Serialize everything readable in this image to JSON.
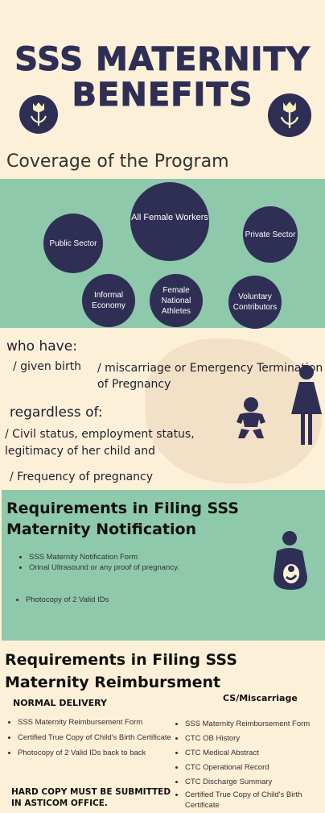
{
  "title": {
    "line1": "SSS MATERNITY",
    "line2": "BENEFITS"
  },
  "icons": {
    "left_badge": "tulip-icon",
    "right_badge": "tulip-icon",
    "baby": "baby-icon",
    "woman": "woman-icon",
    "pregnant": "pregnant-woman-icon"
  },
  "colors": {
    "navy": "#2f2f55",
    "mint": "#8ec9ab",
    "cream": "#fdf0d8"
  },
  "coverage": {
    "heading": "Coverage of the Program",
    "circles": [
      "All Female Workers",
      "Public Sector",
      "Private Sector",
      "Informal Economy",
      "Female National Athletes",
      "Voluntary Contributors"
    ]
  },
  "who_have": {
    "heading": "who have:",
    "item1": "/ given birth",
    "item2": "/  miscarriage or Emergency Termination of Pregnancy"
  },
  "regardless": {
    "heading": "regardless of:",
    "item1": "/ Civil status, employment status, legitimacy of her child and",
    "item2": "/ Frequency of pregnancy"
  },
  "notification": {
    "heading": "Requirements in Filing SSS Maternity Notification",
    "items": [
      "SSS Maternity Notification Form",
      "Orinal Ultrasound or any proof of pregnancy.",
      "Photocopy of 2 Valid IDs"
    ]
  },
  "reimbursement": {
    "heading": "Requirements in Filing SSS Maternity Reimbursment",
    "normal": {
      "label": "NORMAL DELIVERY",
      "items": [
        "SSS Maternity Reimbursement Form",
        "Certified True Copy of Child's Birth Certificate",
        "Photocopy of 2 Valid IDs back to back"
      ],
      "note": "HARD COPY MUST BE SUBMITTED IN ASTICOM OFFICE."
    },
    "cs": {
      "label": "CS/Miscarriage",
      "items": [
        "SSS Maternity Reimbursement Form",
        "CTC OB History",
        "CTC Medical Abstract",
        "CTC Operational Record",
        "CTC Discharge Summary",
        "Certified True Copy of Child's Birth Certificate"
      ]
    }
  }
}
